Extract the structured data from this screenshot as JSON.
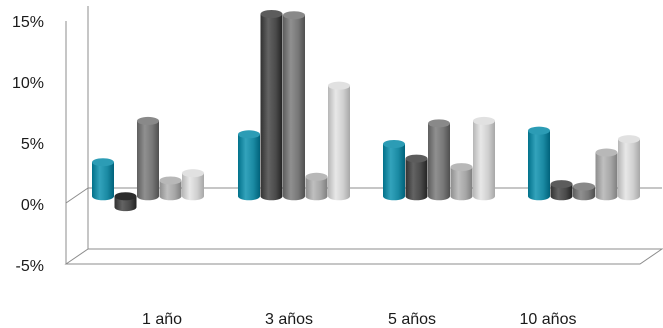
{
  "chart_data": {
    "type": "bar",
    "title": "",
    "xlabel": "",
    "ylabel": "",
    "categories": [
      "1 año",
      "3 años",
      "5 años",
      "10 años"
    ],
    "ylim": [
      -5,
      15
    ],
    "yticks": [
      -5,
      0,
      5,
      10,
      15
    ],
    "ytick_labels": [
      "-5%",
      "0%",
      "5%",
      "10%",
      "15%"
    ],
    "grid": false,
    "legend": "none",
    "style": "3d-cylinder",
    "series": [
      {
        "values": [
          2.8,
          5.1,
          4.3,
          5.4
        ],
        "color": "#1a8aa3"
      },
      {
        "values": [
          -0.9,
          15.0,
          3.1,
          1.0
        ],
        "color": "#4a4a4a"
      },
      {
        "values": [
          6.2,
          14.9,
          6.0,
          0.8
        ],
        "color": "#777777"
      },
      {
        "values": [
          1.3,
          1.6,
          2.4,
          3.6
        ],
        "color": "#a6a6a6"
      },
      {
        "values": [
          1.9,
          9.1,
          6.2,
          4.7
        ],
        "color": "#cfcfcf"
      }
    ]
  }
}
